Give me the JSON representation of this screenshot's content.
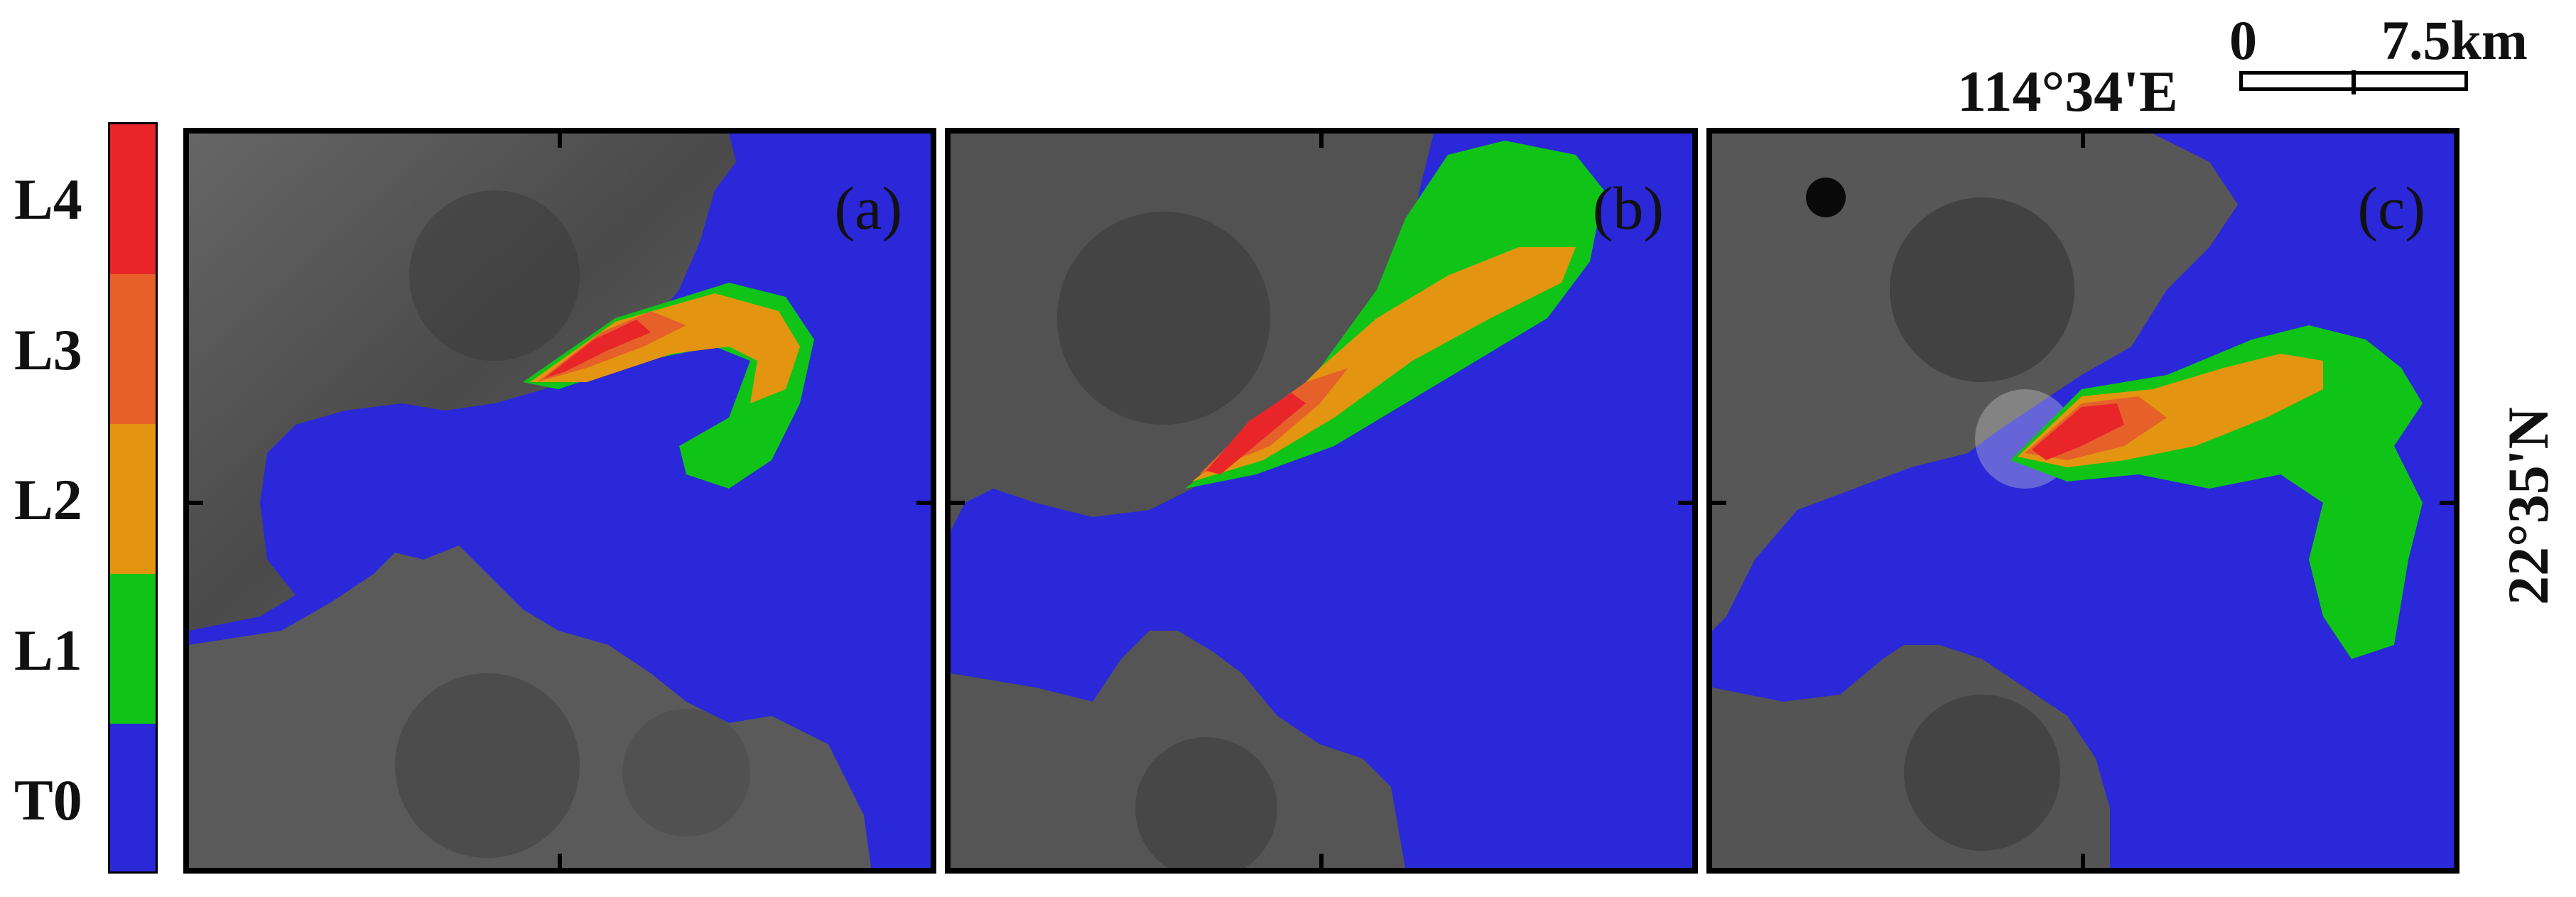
{
  "legend": {
    "items": [
      {
        "label": "L4",
        "color": "#e8262a"
      },
      {
        "label": "L3",
        "color": "#e6612a"
      },
      {
        "label": "L2",
        "color": "#e39512"
      },
      {
        "label": "L1",
        "color": "#10c417"
      },
      {
        "label": "T0",
        "color": "#2a28d8"
      }
    ]
  },
  "panels": [
    {
      "label": "(a)"
    },
    {
      "label": "(b)"
    },
    {
      "label": "(c)"
    }
  ],
  "coordinates": {
    "longitude": "114°34'E",
    "latitude": "22°35'N"
  },
  "scale": {
    "start": "0",
    "end": "7.5km"
  },
  "colors": {
    "water": "#2a28d8",
    "land": "#5d5d5d"
  }
}
